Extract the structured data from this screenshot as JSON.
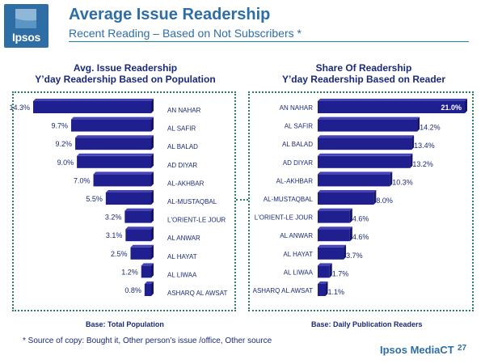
{
  "header": {
    "logo_text": "Ipsos",
    "title": "Average Issue Readership",
    "subtitle": "Recent Reading – Based on Not Subscribers *"
  },
  "left_panel": {
    "heading_line1": "Avg. Issue Readership",
    "heading_line2": "Y’day Readership Based on Population",
    "base": "Base: Total Population"
  },
  "right_panel": {
    "heading_line1": "Share Of Readership",
    "heading_line2": "Y’day Readership Based on Reader",
    "base": "Base: Daily Publication Readers"
  },
  "footer": {
    "footnote": "* Source of copy: Bought it, Other person’s issue /office, Other source",
    "brand": "Ipsos MediaCT",
    "page_number": "27"
  },
  "colors": {
    "bar": "#1f1f8f",
    "bar_top": "#4444b8",
    "label": "#1a2a78",
    "accent": "#2e6ea5"
  },
  "chart_data": [
    {
      "type": "bar",
      "orientation": "horizontal",
      "categories": [
        "AN NAHAR",
        "AL SAFIR",
        "AL BALAD",
        "AD DIYAR",
        "AL-AKHBAR",
        "AL-MUSTAQBAL",
        "L'ORIENT-LE JOUR",
        "AL ANWAR",
        "AL HAYAT",
        "AL LIWAA",
        "ASHARQ AL AWSAT"
      ],
      "values": [
        14.3,
        9.7,
        9.2,
        9.0,
        7.0,
        5.5,
        3.2,
        3.1,
        2.5,
        1.2,
        0.8
      ],
      "value_labels": [
        "14.3%",
        "9.7%",
        "9.2%",
        "9.0%",
        "7.0%",
        "5.5%",
        "3.2%",
        "3.1%",
        "2.5%",
        "1.2%",
        "0.8%"
      ],
      "bar_direction": "right-to-left",
      "xlim": [
        0,
        14.3
      ]
    },
    {
      "type": "bar",
      "orientation": "horizontal",
      "categories": [
        "AN NAHAR",
        "AL SAFIR",
        "AL BALAD",
        "AD DIYAR",
        "AL-AKHBAR",
        "AL-MUSTAQBAL",
        "L'ORIENT-LE JOUR",
        "AL ANWAR",
        "AL HAYAT",
        "AL LIWAA",
        "ASHARQ AL AWSAT"
      ],
      "values": [
        21.0,
        14.2,
        13.4,
        13.2,
        10.3,
        8.0,
        4.6,
        4.6,
        3.7,
        1.7,
        1.1
      ],
      "value_labels": [
        "21.0%",
        "14.2%",
        "13.4%",
        "13.2%",
        "10.3%",
        "8.0%",
        "4.6%",
        "4.6%",
        "3.7%",
        "1.7%",
        "1.1%"
      ],
      "bar_direction": "left-to-right",
      "xlim": [
        0,
        21.0
      ]
    }
  ]
}
